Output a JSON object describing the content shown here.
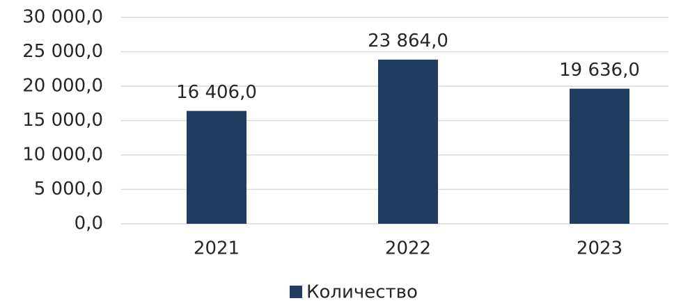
{
  "chart_data": {
    "type": "bar",
    "categories": [
      "2021",
      "2022",
      "2023"
    ],
    "series": [
      {
        "name": "Количество",
        "color": "#203d5f",
        "values": [
          16406,
          23864,
          19636
        ],
        "value_labels": [
          "16 406,0",
          "23 864,0",
          "19 636,0"
        ]
      }
    ],
    "ylim": [
      0,
      30000
    ],
    "yticks": [
      {
        "value": 0,
        "label": "0,0"
      },
      {
        "value": 5000,
        "label": "5 000,0"
      },
      {
        "value": 10000,
        "label": "10 000,0"
      },
      {
        "value": 15000,
        "label": "15 000,0"
      },
      {
        "value": 20000,
        "label": "20 000,0"
      },
      {
        "value": 25000,
        "label": "25 000,0"
      },
      {
        "value": 30000,
        "label": "30 000,0"
      }
    ],
    "grid": true,
    "legend": "bottom"
  }
}
